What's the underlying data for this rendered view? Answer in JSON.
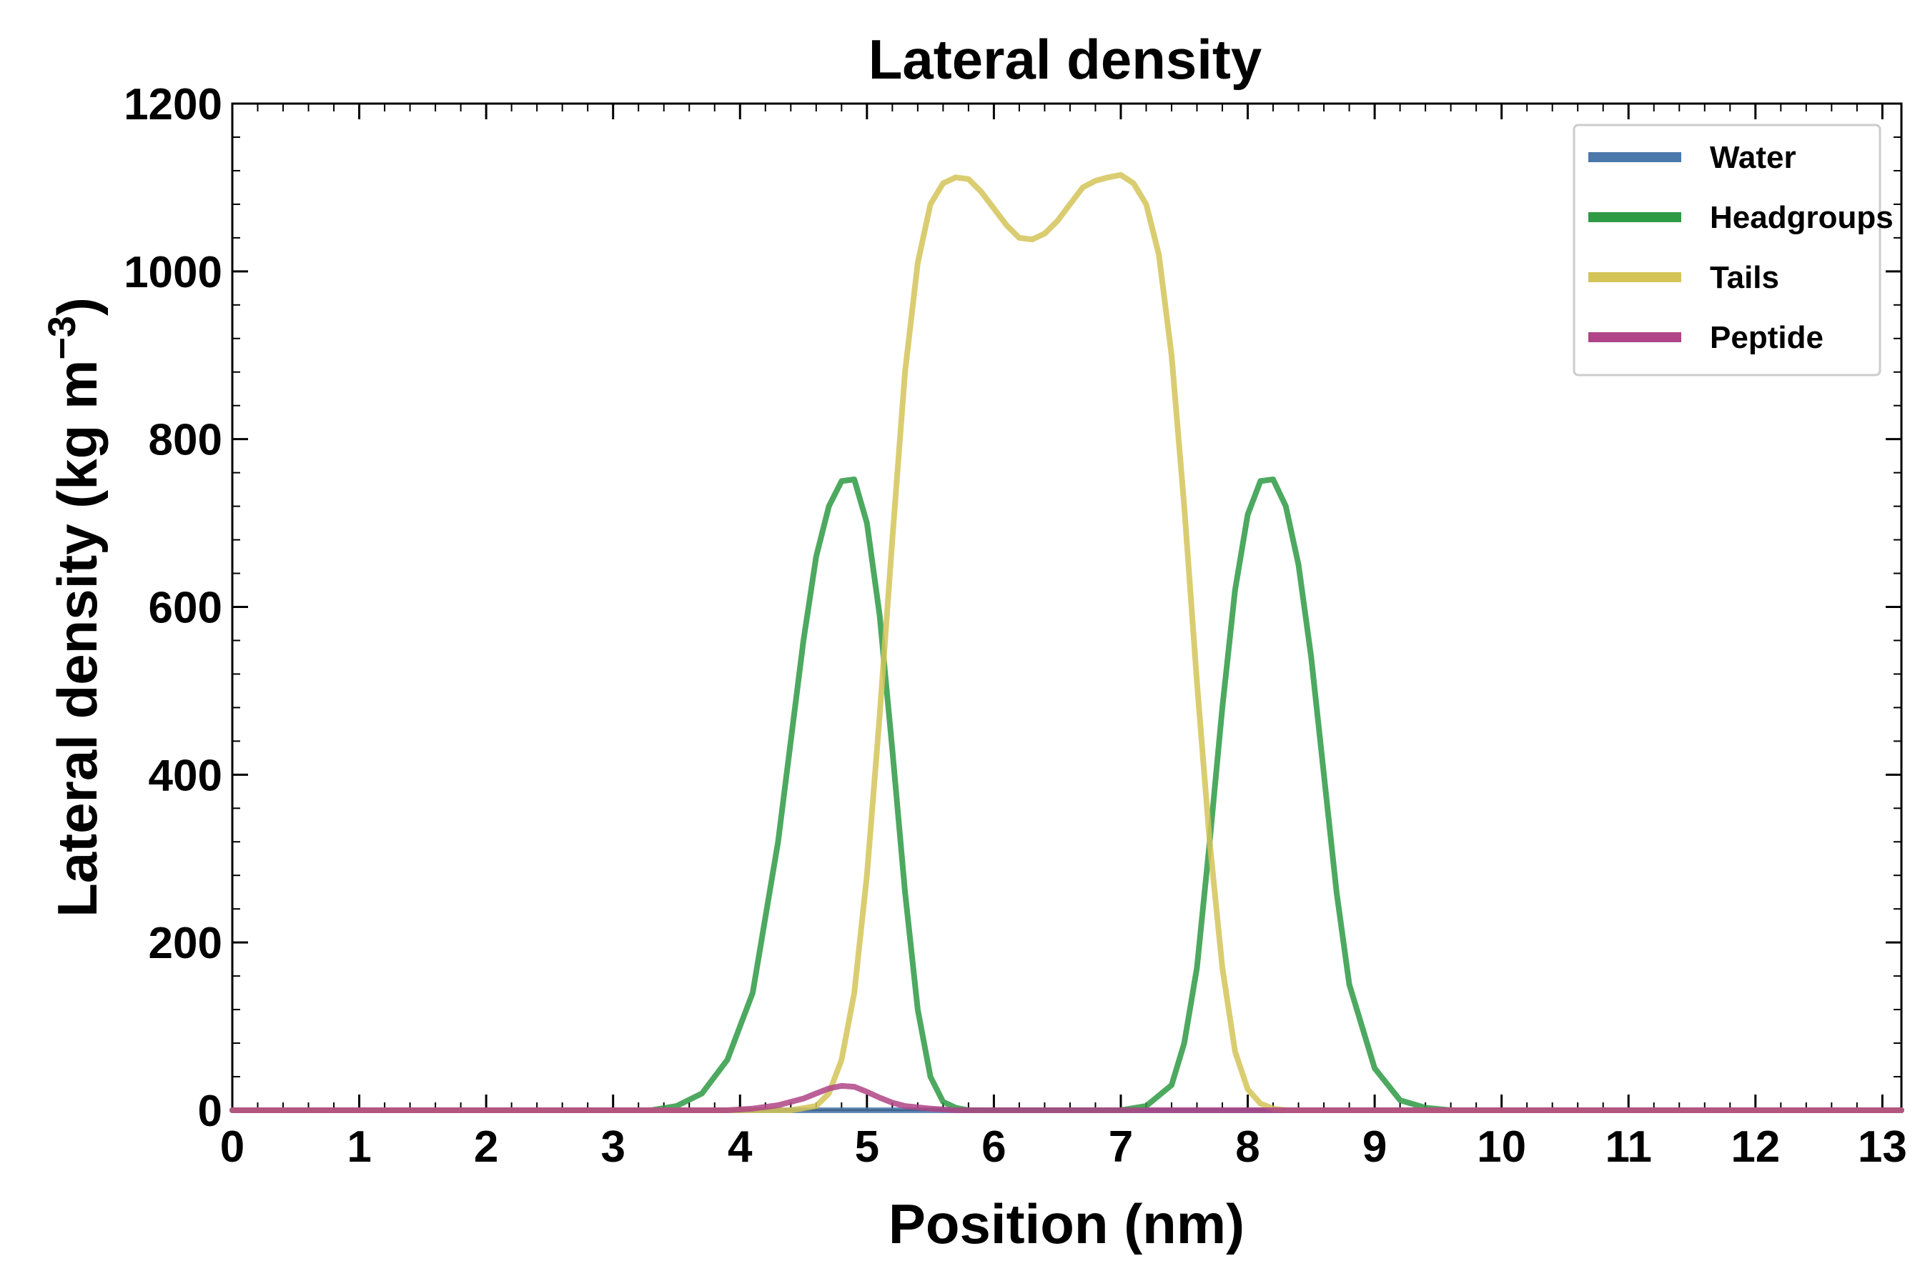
{
  "chart_data": {
    "type": "line",
    "title": "Lateral density",
    "xlabel": "Position (nm)",
    "ylabel": "Lateral density (kg m",
    "ylabel_unit_exponent": "−3",
    "ylabel_close": ")",
    "xlim": [
      0,
      13.15
    ],
    "ylim": [
      0,
      1200
    ],
    "x_ticks": [
      0,
      1,
      2,
      3,
      4,
      5,
      6,
      7,
      8,
      9,
      10,
      11,
      12,
      13
    ],
    "y_ticks": [
      0,
      200,
      400,
      600,
      800,
      1000,
      1200
    ],
    "x_tick_labels": [
      "0",
      "1",
      "2",
      "3",
      "4",
      "5",
      "6",
      "7",
      "8",
      "9",
      "10",
      "11",
      "12",
      "13"
    ],
    "y_tick_labels": [
      "0",
      "200",
      "400",
      "600",
      "800",
      "1000",
      "1200"
    ],
    "grid": false,
    "legend_position": "top-right",
    "series": [
      {
        "name": "Water",
        "color": "#4a78aa",
        "x": [
          0,
          13.15
        ],
        "y": [
          0,
          0
        ]
      },
      {
        "name": "Headgroups",
        "color": "#2e9a44",
        "x": [
          0,
          3.0,
          3.3,
          3.5,
          3.7,
          3.9,
          4.1,
          4.3,
          4.5,
          4.6,
          4.7,
          4.8,
          4.9,
          5.0,
          5.1,
          5.2,
          5.3,
          5.4,
          5.5,
          5.6,
          5.7,
          5.8,
          6.0,
          7.0,
          7.2,
          7.4,
          7.5,
          7.6,
          7.7,
          7.8,
          7.9,
          8.0,
          8.1,
          8.2,
          8.3,
          8.4,
          8.5,
          8.6,
          8.7,
          8.8,
          9.0,
          9.2,
          9.4,
          9.6,
          9.8,
          10.0,
          13.15
        ],
        "y": [
          0,
          0,
          0,
          5,
          20,
          60,
          140,
          320,
          560,
          660,
          720,
          750,
          752,
          700,
          590,
          430,
          260,
          120,
          40,
          10,
          3,
          0,
          0,
          0,
          5,
          30,
          80,
          170,
          320,
          480,
          620,
          710,
          750,
          752,
          720,
          650,
          540,
          400,
          260,
          150,
          50,
          12,
          3,
          0,
          0,
          0,
          0
        ]
      },
      {
        "name": "Tails",
        "color": "#d4c458",
        "x": [
          0,
          4.4,
          4.6,
          4.7,
          4.8,
          4.9,
          5.0,
          5.1,
          5.2,
          5.3,
          5.4,
          5.5,
          5.6,
          5.7,
          5.8,
          5.9,
          6.0,
          6.1,
          6.2,
          6.3,
          6.4,
          6.5,
          6.6,
          6.7,
          6.8,
          6.9,
          7.0,
          7.1,
          7.2,
          7.3,
          7.4,
          7.5,
          7.6,
          7.7,
          7.8,
          7.9,
          8.0,
          8.1,
          8.2,
          8.3,
          8.4,
          8.5,
          8.6,
          8.8,
          13.15
        ],
        "y": [
          0,
          0,
          5,
          20,
          60,
          140,
          280,
          470,
          680,
          880,
          1010,
          1080,
          1105,
          1112,
          1110,
          1095,
          1075,
          1055,
          1040,
          1038,
          1045,
          1060,
          1080,
          1100,
          1108,
          1112,
          1115,
          1105,
          1080,
          1020,
          900,
          720,
          510,
          320,
          170,
          70,
          25,
          8,
          2,
          0,
          0,
          0,
          0,
          0,
          0
        ]
      },
      {
        "name": "Peptide",
        "color": "#b04486",
        "x": [
          0,
          3.9,
          4.1,
          4.3,
          4.5,
          4.6,
          4.7,
          4.8,
          4.9,
          5.0,
          5.1,
          5.2,
          5.3,
          5.5,
          5.7,
          13.15
        ],
        "y": [
          0,
          0,
          2,
          6,
          14,
          20,
          26,
          29,
          28,
          22,
          15,
          9,
          5,
          2,
          0,
          0
        ]
      }
    ]
  }
}
